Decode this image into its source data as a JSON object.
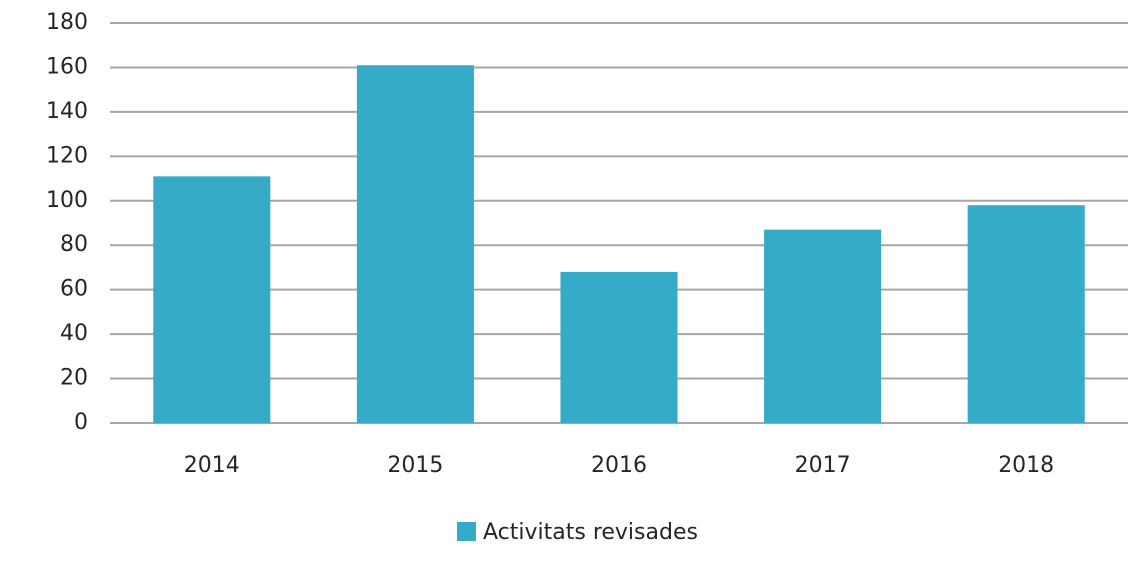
{
  "chart_data": {
    "type": "bar",
    "categories": [
      "2014",
      "2015",
      "2016",
      "2017",
      "2018"
    ],
    "series": [
      {
        "name": "Activitats revisades",
        "color": "#35abc8",
        "values": [
          111,
          161,
          68,
          87,
          98
        ]
      }
    ],
    "ylim": [
      0,
      180
    ],
    "yticks": [
      0,
      20,
      40,
      60,
      80,
      100,
      120,
      140,
      160,
      180
    ],
    "grid": true,
    "legend": "bottom"
  }
}
